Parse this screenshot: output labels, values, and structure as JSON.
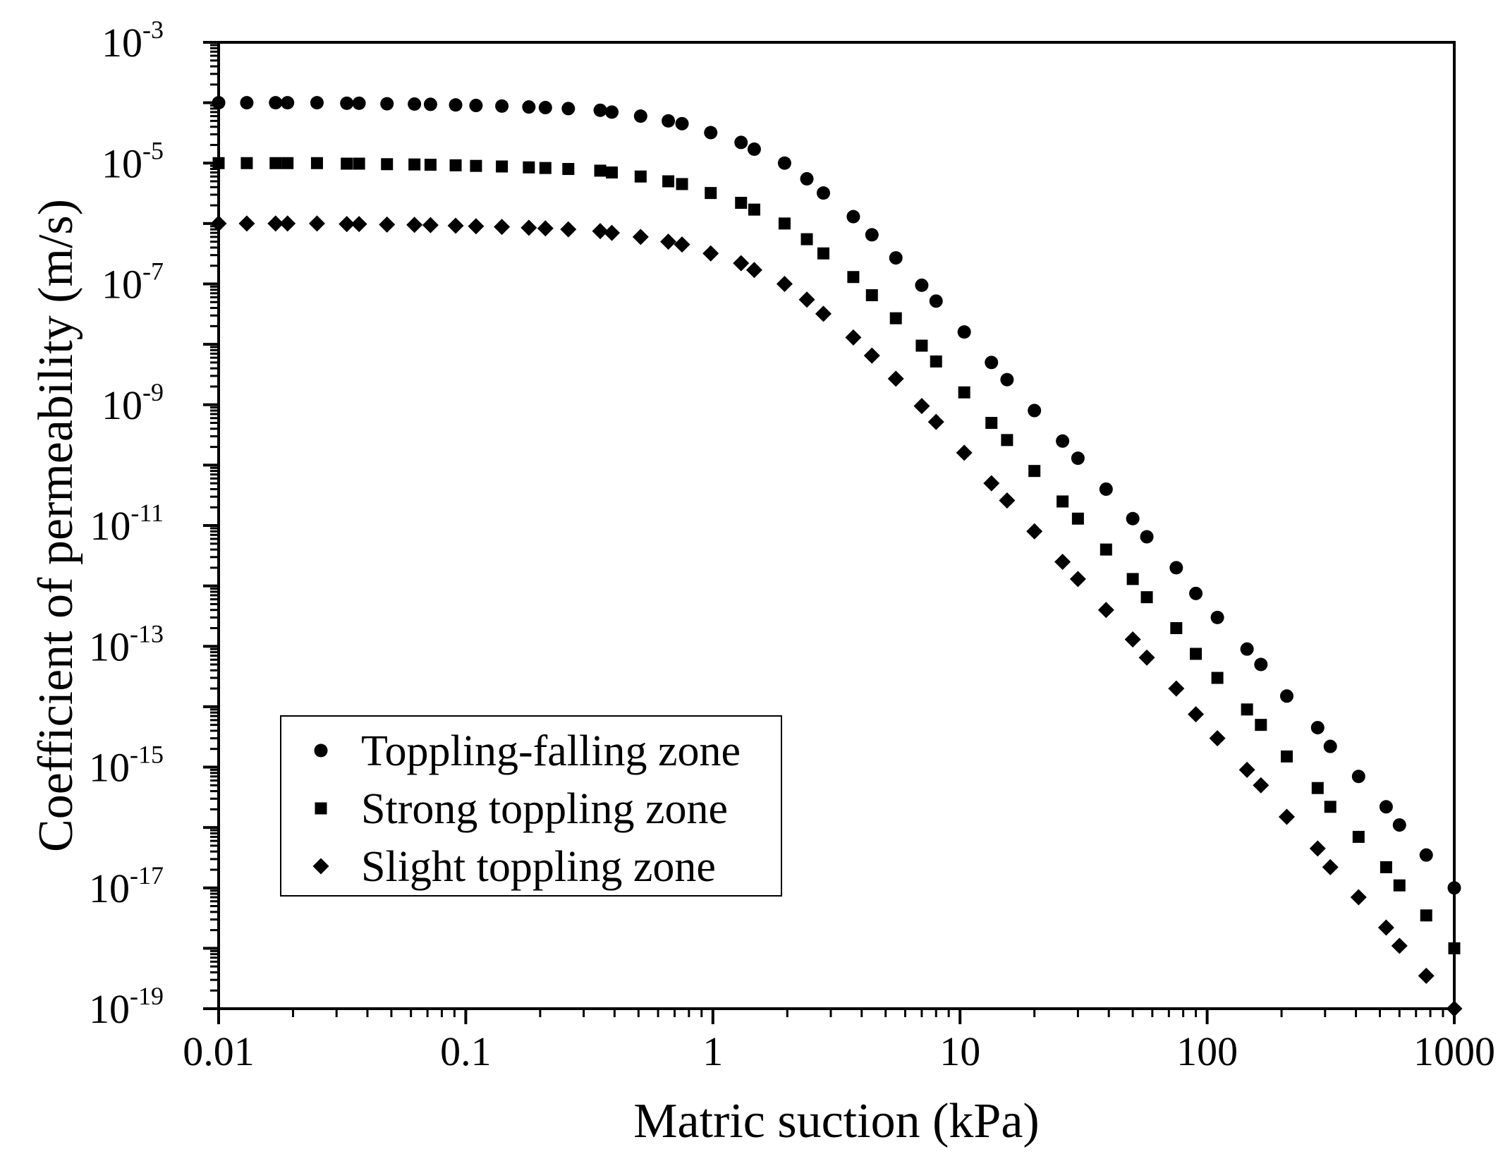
{
  "chart_data": {
    "type": "scatter",
    "title": "",
    "xlabel": "Matric suction (kPa)",
    "ylabel": "Coefficient of permeability (m/s)",
    "xscale": "log",
    "yscale": "log",
    "xlim": [
      0.01,
      1000
    ],
    "ylim": [
      1e-19,
      0.001
    ],
    "x_ticks": [
      {
        "value": 0.01,
        "label": "0.01"
      },
      {
        "value": 0.1,
        "label": "0.1"
      },
      {
        "value": 1,
        "label": "1"
      },
      {
        "value": 10,
        "label": "10"
      },
      {
        "value": 100,
        "label": "100"
      },
      {
        "value": 1000,
        "label": "1000"
      }
    ],
    "y_ticks": [
      {
        "value": 0.001,
        "base": "10",
        "exp": "-3"
      },
      {
        "value": 1e-05,
        "base": "10",
        "exp": "-5"
      },
      {
        "value": 1e-07,
        "base": "10",
        "exp": "-7"
      },
      {
        "value": 1e-09,
        "base": "10",
        "exp": "-9"
      },
      {
        "value": 1e-11,
        "base": "10",
        "exp": "-11"
      },
      {
        "value": 1e-13,
        "base": "10",
        "exp": "-13"
      },
      {
        "value": 1e-15,
        "base": "10",
        "exp": "-15"
      },
      {
        "value": 1e-17,
        "base": "10",
        "exp": "-17"
      },
      {
        "value": 1e-19,
        "base": "10",
        "exp": "-19"
      }
    ],
    "grid": false,
    "legend_position": "bottom-left",
    "x": [
      0.01,
      0.013,
      0.017,
      0.019,
      0.025,
      0.033,
      0.037,
      0.048,
      0.062,
      0.072,
      0.091,
      0.11,
      0.14,
      0.18,
      0.21,
      0.26,
      0.35,
      0.39,
      0.51,
      0.66,
      0.75,
      0.98,
      1.3,
      1.47,
      1.95,
      2.4,
      2.8,
      3.7,
      4.4,
      5.5,
      7.0,
      8.0,
      10.4,
      13.4,
      15.5,
      20.0,
      26.0,
      30.0,
      39.0,
      50.0,
      57.0,
      75.0,
      90.0,
      110.0,
      145.0,
      165.0,
      210.0,
      280.0,
      315.0,
      410.0,
      530.0,
      600.0,
      770.0,
      1000.0
    ],
    "series": [
      {
        "name": "Toppling-falling zone",
        "marker": "circle",
        "values": [
          0.0001,
          0.0001,
          0.0001,
          0.0001,
          0.0001,
          9.8e-05,
          9.8e-05,
          9.6e-05,
          9.5e-05,
          9.4e-05,
          9.2e-05,
          9e-05,
          8.8e-05,
          8.5e-05,
          8.3e-05,
          8e-05,
          7.5e-05,
          7e-05,
          6e-05,
          5e-05,
          4.5e-05,
          3.2e-05,
          2.2e-05,
          1.7e-05,
          1e-05,
          5.5e-06,
          3.2e-06,
          1.3e-06,
          6.5e-07,
          2.7e-07,
          9.5e-08,
          5.2e-08,
          1.6e-08,
          5e-09,
          2.6e-09,
          8e-10,
          2.5e-10,
          1.3e-10,
          4e-11,
          1.3e-11,
          6.5e-12,
          2e-12,
          7.5e-13,
          3e-13,
          9e-14,
          5e-14,
          1.5e-14,
          4.5e-15,
          2.2e-15,
          7e-16,
          2.2e-16,
          1.1e-16,
          3.5e-17,
          1e-17
        ]
      },
      {
        "name": "Strong toppling zone",
        "marker": "square",
        "values": [
          1e-05,
          1e-05,
          1e-05,
          1e-05,
          1e-05,
          9.8e-06,
          9.8e-06,
          9.6e-06,
          9.5e-06,
          9.4e-06,
          9.2e-06,
          9e-06,
          8.8e-06,
          8.5e-06,
          8.3e-06,
          8e-06,
          7.5e-06,
          7e-06,
          6e-06,
          5e-06,
          4.5e-06,
          3.2e-06,
          2.2e-06,
          1.7e-06,
          1e-06,
          5.5e-07,
          3.2e-07,
          1.3e-07,
          6.5e-08,
          2.7e-08,
          9.5e-09,
          5.2e-09,
          1.6e-09,
          5e-10,
          2.6e-10,
          8e-11,
          2.5e-11,
          1.3e-11,
          4e-12,
          1.3e-12,
          6.5e-13,
          2e-13,
          7.5e-14,
          3e-14,
          9e-15,
          5e-15,
          1.5e-15,
          4.5e-16,
          2.2e-16,
          7e-17,
          2.2e-17,
          1.1e-17,
          3.5e-18,
          1e-18
        ]
      },
      {
        "name": "Slight toppling zone",
        "marker": "diamond",
        "values": [
          1e-06,
          1e-06,
          1e-06,
          1e-06,
          1e-06,
          9.8e-07,
          9.8e-07,
          9.6e-07,
          9.5e-07,
          9.4e-07,
          9.2e-07,
          9e-07,
          8.8e-07,
          8.5e-07,
          8.3e-07,
          8e-07,
          7.5e-07,
          7e-07,
          6e-07,
          5e-07,
          4.5e-07,
          3.2e-07,
          2.2e-07,
          1.7e-07,
          1e-07,
          5.5e-08,
          3.2e-08,
          1.3e-08,
          6.5e-09,
          2.7e-09,
          9.5e-10,
          5.2e-10,
          1.6e-10,
          5e-11,
          2.6e-11,
          8e-12,
          2.5e-12,
          1.3e-12,
          4e-13,
          1.3e-13,
          6.5e-14,
          2e-14,
          7.5e-15,
          3e-15,
          9e-16,
          5e-16,
          1.5e-16,
          4.5e-17,
          2.2e-17,
          7e-18,
          2.2e-18,
          1.1e-18,
          3.5e-19,
          1e-19
        ]
      }
    ]
  }
}
